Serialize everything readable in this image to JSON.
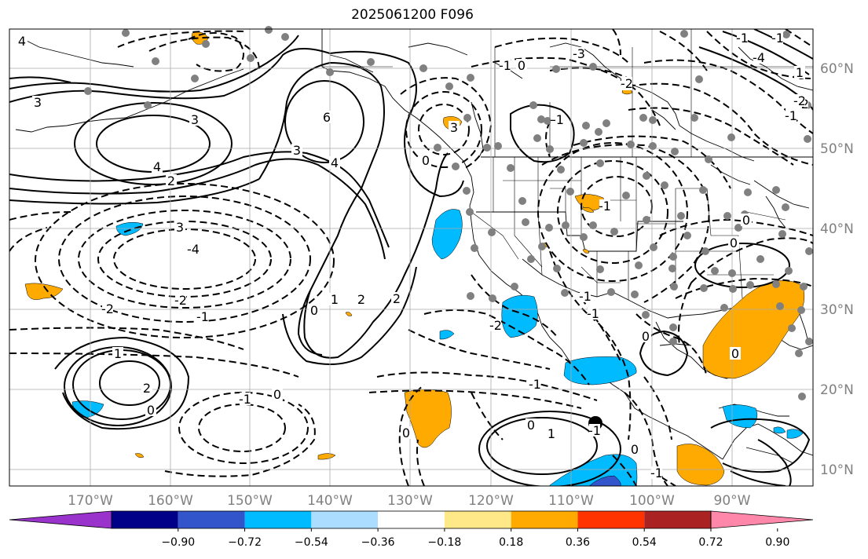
{
  "title": "2025061200 F096",
  "lat_labels": [
    "60°N",
    "50°N",
    "40°N",
    "30°N",
    "20°N",
    "10°N"
  ],
  "lon_labels": [
    "170°W",
    "160°W",
    "150°W",
    "140°W",
    "130°W",
    "120°W",
    "110°W",
    "100°W",
    "90°W"
  ],
  "colorbar": {
    "colors": [
      "#9933cc",
      "#000088",
      "#3355cc",
      "#00bbff",
      "#aaddff",
      "#ffffff",
      "#ffe888",
      "#ffaa00",
      "#ff3300",
      "#aa2222",
      "#ff88aa"
    ],
    "tick_labels": [
      "−0.90",
      "−0.72",
      "−0.54",
      "−0.36",
      "−0.18",
      "0.18",
      "0.36",
      "0.54",
      "0.72",
      "0.90"
    ]
  },
  "contour_labels": [
    "4",
    "3",
    "3",
    "4",
    "2",
    "6",
    "3",
    "4",
    "0",
    "3",
    "-1",
    "0",
    "-2",
    "-1",
    "0",
    "3",
    "-4",
    "-2",
    "-2",
    "-1",
    "0",
    "1",
    "2",
    "2",
    "1",
    "2",
    "0",
    "-1",
    "0",
    "-1",
    "0",
    "1",
    "0",
    "-1",
    "0",
    "-2",
    "-1",
    "0",
    "-1",
    "-1",
    "-3",
    "-2",
    "-4",
    "-3",
    "-2",
    "-1",
    "-2",
    "0",
    "-1",
    "0",
    "-1",
    "1",
    "-1",
    "-1"
  ],
  "colors": {
    "ocean_grid": "#aaaaaa",
    "station": "#808080"
  }
}
